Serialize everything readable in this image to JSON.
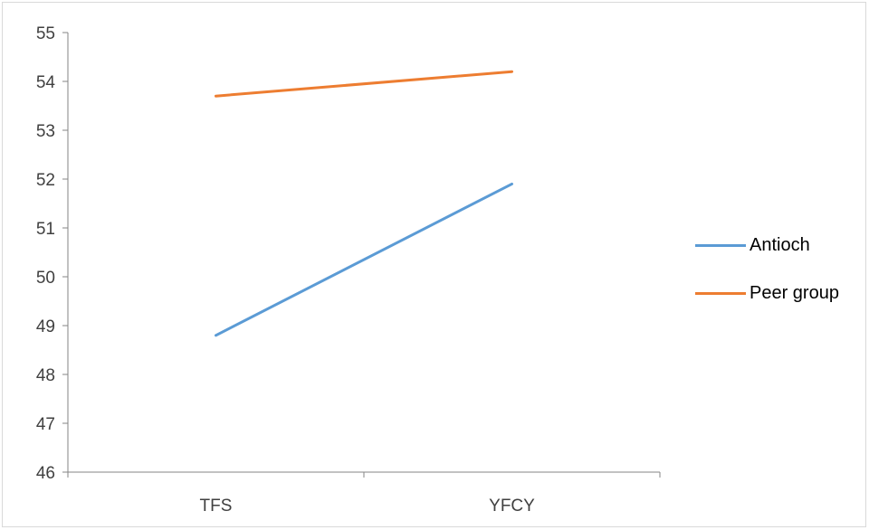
{
  "chart_data": {
    "type": "line",
    "title": "",
    "xlabel": "",
    "ylabel": "",
    "categories": [
      "TFS",
      "YFCY"
    ],
    "ylim": [
      46,
      55
    ],
    "yticks": [
      "46",
      "47",
      "48",
      "49",
      "50",
      "51",
      "52",
      "53",
      "54",
      "55"
    ],
    "grid": false,
    "legend_position": "right",
    "series": [
      {
        "name": "Antioch",
        "values": [
          48.8,
          51.9
        ],
        "color": "#5b9bd5"
      },
      {
        "name": "Peer group",
        "values": [
          53.7,
          54.2
        ],
        "color": "#ed7d31"
      }
    ]
  }
}
